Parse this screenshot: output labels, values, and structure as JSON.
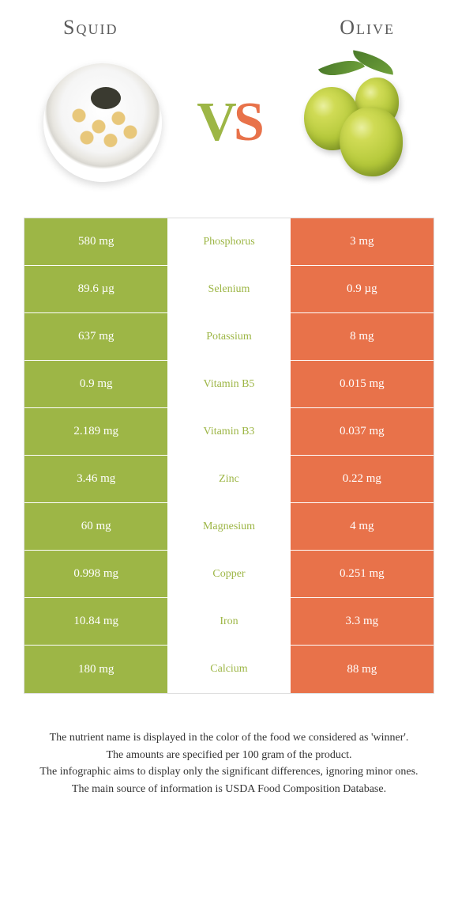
{
  "header": {
    "left_title": "Squid",
    "right_title": "Olive",
    "vs_v": "V",
    "vs_s": "S"
  },
  "colors": {
    "left_bg": "#9db646",
    "right_bg": "#e8724a",
    "mid_bg": "#ffffff",
    "nutrient_text": "#9db646",
    "value_text": "#ffffff",
    "border": "#dddddd"
  },
  "rows": [
    {
      "nutrient": "Phosphorus",
      "left": "580 mg",
      "right": "3 mg"
    },
    {
      "nutrient": "Selenium",
      "left": "89.6 µg",
      "right": "0.9 µg"
    },
    {
      "nutrient": "Potassium",
      "left": "637 mg",
      "right": "8 mg"
    },
    {
      "nutrient": "Vitamin B5",
      "left": "0.9 mg",
      "right": "0.015 mg"
    },
    {
      "nutrient": "Vitamin B3",
      "left": "2.189 mg",
      "right": "0.037 mg"
    },
    {
      "nutrient": "Zinc",
      "left": "3.46 mg",
      "right": "0.22 mg"
    },
    {
      "nutrient": "Magnesium",
      "left": "60 mg",
      "right": "4 mg"
    },
    {
      "nutrient": "Copper",
      "left": "0.998 mg",
      "right": "0.251 mg"
    },
    {
      "nutrient": "Iron",
      "left": "10.84 mg",
      "right": "3.3 mg"
    },
    {
      "nutrient": "Calcium",
      "left": "180 mg",
      "right": "88 mg"
    }
  ],
  "footer": {
    "line1": "The nutrient name is displayed in the color of the food we considered as 'winner'.",
    "line2": "The amounts are specified per 100 gram of the product.",
    "line3": "The infographic aims to display only the significant differences, ignoring minor ones.",
    "line4": "The main source of information is USDA Food Composition Database."
  }
}
